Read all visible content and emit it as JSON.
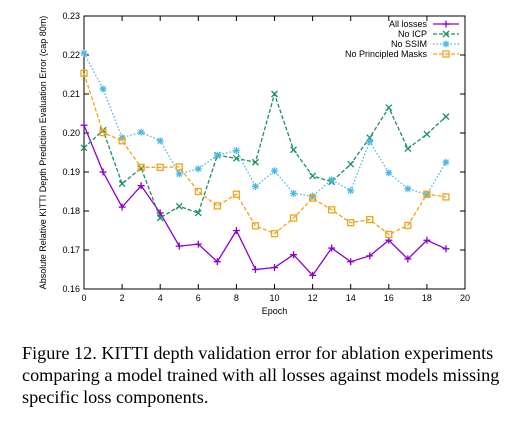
{
  "chart_data": {
    "type": "line",
    "title": "",
    "xlabel": "Epoch",
    "ylabel": "Absolute Relative KITTI Depth Prediction Evaluation Error (cap 80m)",
    "xlim": [
      0,
      20
    ],
    "ylim": [
      0.16,
      0.23
    ],
    "x_ticks": [
      0,
      2,
      4,
      6,
      8,
      10,
      12,
      14,
      16,
      18,
      20
    ],
    "y_ticks": [
      0.16,
      0.17,
      0.18,
      0.19,
      0.2,
      0.21,
      0.22,
      0.23
    ],
    "grid": false,
    "legend_position": "top-right",
    "x": [
      0,
      1,
      2,
      3,
      4,
      5,
      6,
      7,
      8,
      9,
      10,
      11,
      12,
      13,
      14,
      15,
      16,
      17,
      18,
      19
    ],
    "series": [
      {
        "name": "All losses",
        "color": "#8e00c8",
        "dash": "solid",
        "marker": "plus",
        "values": [
          0.202,
          0.19,
          0.181,
          0.1865,
          0.1795,
          0.171,
          0.1715,
          0.167,
          0.175,
          0.165,
          0.1655,
          0.1688,
          0.1635,
          0.1705,
          0.167,
          0.1685,
          0.1725,
          0.1677,
          0.1725,
          0.1703
        ]
      },
      {
        "name": "No ICP",
        "color": "#1a9060",
        "dash": "dashed",
        "marker": "x",
        "values": [
          0.1962,
          0.2007,
          0.187,
          0.191,
          0.1782,
          0.1812,
          0.1795,
          0.1943,
          0.1935,
          0.1925,
          0.21,
          0.1957,
          0.189,
          0.1875,
          0.192,
          0.1988,
          0.2065,
          0.196,
          0.1997,
          0.2042
        ]
      },
      {
        "name": "No SSIM",
        "color": "#49b7e8",
        "dash": "dotted",
        "marker": "star",
        "values": [
          0.2205,
          0.2113,
          0.1988,
          0.2002,
          0.198,
          0.1895,
          0.1908,
          0.1943,
          0.1955,
          0.1863,
          0.1903,
          0.1845,
          0.1838,
          0.188,
          0.1852,
          0.1978,
          0.1898,
          0.1857,
          0.1842,
          0.1925
        ]
      },
      {
        "name": "No Principled Masks",
        "color": "#f0a51e",
        "dash": "dashed",
        "marker": "square",
        "values": [
          0.2153,
          0.2001,
          0.198,
          0.1912,
          0.1912,
          0.1913,
          0.185,
          0.1813,
          0.1843,
          0.1762,
          0.1742,
          0.1782,
          0.1833,
          0.1803,
          0.177,
          0.1778,
          0.174,
          0.1763,
          0.1843,
          0.1836
        ]
      }
    ]
  },
  "caption": "Figure 12. KITTI depth validation error for ablation experiments comparing a model trained with all losses against models missing specific loss components."
}
